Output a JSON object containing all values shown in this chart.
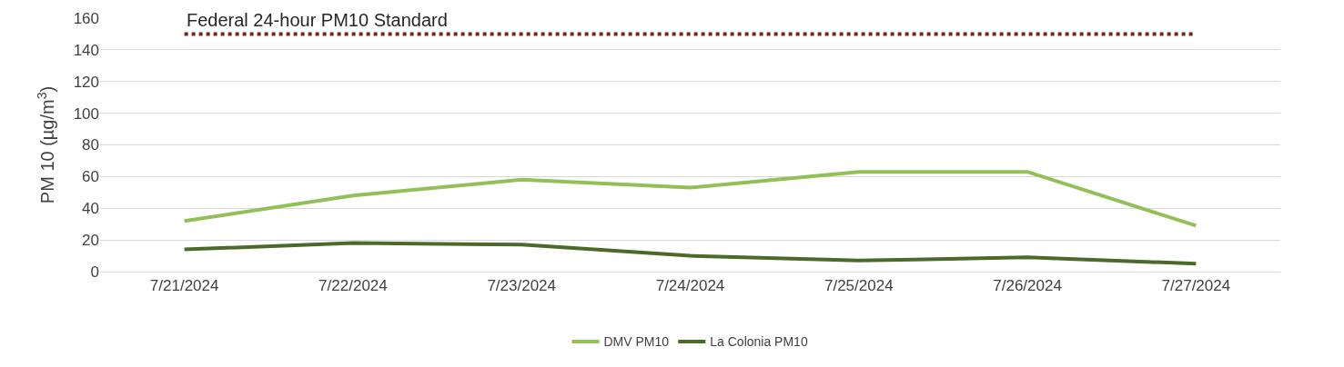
{
  "chart_data": {
    "type": "line",
    "ylabel": "PM 10 (µg/m$^{3}$)",
    "categories": [
      "7/21/2024",
      "7/22/2024",
      "7/23/2024",
      "7/24/2024",
      "7/25/2024",
      "7/26/2024",
      "7/27/2024"
    ],
    "series": [
      {
        "name": "DMV PM10",
        "color": "#92c057",
        "values": [
          32,
          48,
          58,
          53,
          63,
          63,
          29
        ]
      },
      {
        "name": "La Colonia PM10",
        "color": "#4a6a2a",
        "values": [
          14,
          18,
          17,
          10,
          7,
          9,
          5
        ]
      }
    ],
    "ref_lines": [
      {
        "axis": "y",
        "value": 150,
        "label": "Federal 24-hour PM10 Standard",
        "color": "#7b2020",
        "line_style": "dotted"
      }
    ],
    "ylim": [
      0,
      160
    ],
    "yticks": [
      0,
      20,
      40,
      60,
      80,
      100,
      120,
      140,
      160
    ],
    "grid": "y",
    "legend": "bottom",
    "marker": "none",
    "line_style": "solid"
  }
}
